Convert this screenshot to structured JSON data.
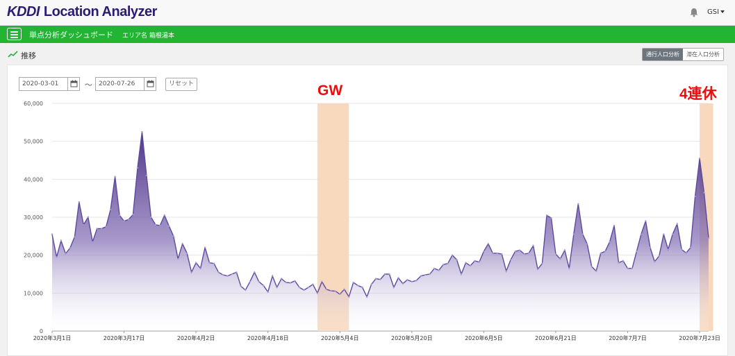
{
  "app": {
    "logo_brand": "KDDI",
    "logo_title": "Location Analyzer",
    "user_label": "GSI",
    "icons": {
      "bell": "bell-icon",
      "menu": "hamburger-menu-icon",
      "trend": "trend-line-icon",
      "calendar": "calendar-icon"
    }
  },
  "navbar": {
    "title": "単点分析ダッシュボード",
    "area_label": "エリア名",
    "area_value": "箱根湯本",
    "bg_color": "#21b533"
  },
  "section": {
    "title": "推移",
    "toggle": [
      "通行人口分析",
      "滞在人口分析"
    ],
    "active_toggle": "通行人口分析"
  },
  "filters": {
    "start_date": "2020-03-01",
    "separator": "～",
    "end_date": "2020-07-26",
    "reset_label": "リセット"
  },
  "annotations": [
    {
      "label": "GW",
      "start": "2020-04-29",
      "end": "2020-05-06",
      "color": "#f8d7bb"
    },
    {
      "label": "4連休",
      "start": "2020-07-23",
      "end": "2020-07-26",
      "color": "#f8d7bb"
    }
  ],
  "chart_data": {
    "type": "area",
    "x_start": "2020-03-01",
    "x_end": "2020-07-26",
    "x_ticks": [
      "2020年3月1日",
      "2020年3月17日",
      "2020年4月2日",
      "2020年4月18日",
      "2020年5月4日",
      "2020年5月20日",
      "2020年6月5日",
      "2020年6月21日",
      "2020年7月7日",
      "2020年7月23日"
    ],
    "ylim": [
      0,
      60000
    ],
    "y_ticks": [
      "0",
      "10,000",
      "20,000",
      "30,000",
      "40,000",
      "50,000",
      "60,000"
    ],
    "grid": true,
    "line_color": "#5b4a9e",
    "fill_top": "#3b1e7a",
    "values": [
      25500,
      19500,
      23800,
      20400,
      21900,
      24800,
      34000,
      28000,
      30000,
      23500,
      27000,
      27000,
      27500,
      32000,
      40700,
      30500,
      29000,
      29400,
      30700,
      43000,
      52500,
      41000,
      30000,
      28000,
      27800,
      30500,
      27700,
      25000,
      19000,
      23000,
      20500,
      15500,
      18000,
      16500,
      22000,
      18000,
      17800,
      15500,
      14800,
      14500,
      15000,
      15500,
      11800,
      10800,
      13000,
      15500,
      13000,
      12000,
      10300,
      14500,
      11500,
      13800,
      12800,
      12700,
      13200,
      11500,
      10800,
      11500,
      12300,
      10000,
      13000,
      11000,
      10600,
      10500,
      9700,
      11000,
      9000,
      12800,
      12000,
      11500,
      9000,
      12300,
      13800,
      13600,
      15000,
      15000,
      11500,
      14000,
      12500,
      13500,
      13000,
      13300,
      14500,
      14800,
      15000,
      16500,
      16000,
      17500,
      17800,
      20000,
      18800,
      15000,
      18000,
      17200,
      18500,
      18200,
      21000,
      23000,
      20500,
      20500,
      20300,
      15800,
      18800,
      21000,
      21300,
      20300,
      20500,
      22500,
      16300,
      17800,
      30500,
      29800,
      20300,
      19000,
      21300,
      16500,
      25500,
      33500,
      25500,
      23000,
      17000,
      15800,
      20500,
      21000,
      23500,
      27800,
      18000,
      18500,
      16500,
      16500,
      21000,
      25500,
      29000,
      22000,
      18300,
      19800,
      25500,
      21500,
      25500,
      28200,
      21500,
      20600,
      22000,
      35500,
      45500,
      36500,
      24500
    ]
  }
}
